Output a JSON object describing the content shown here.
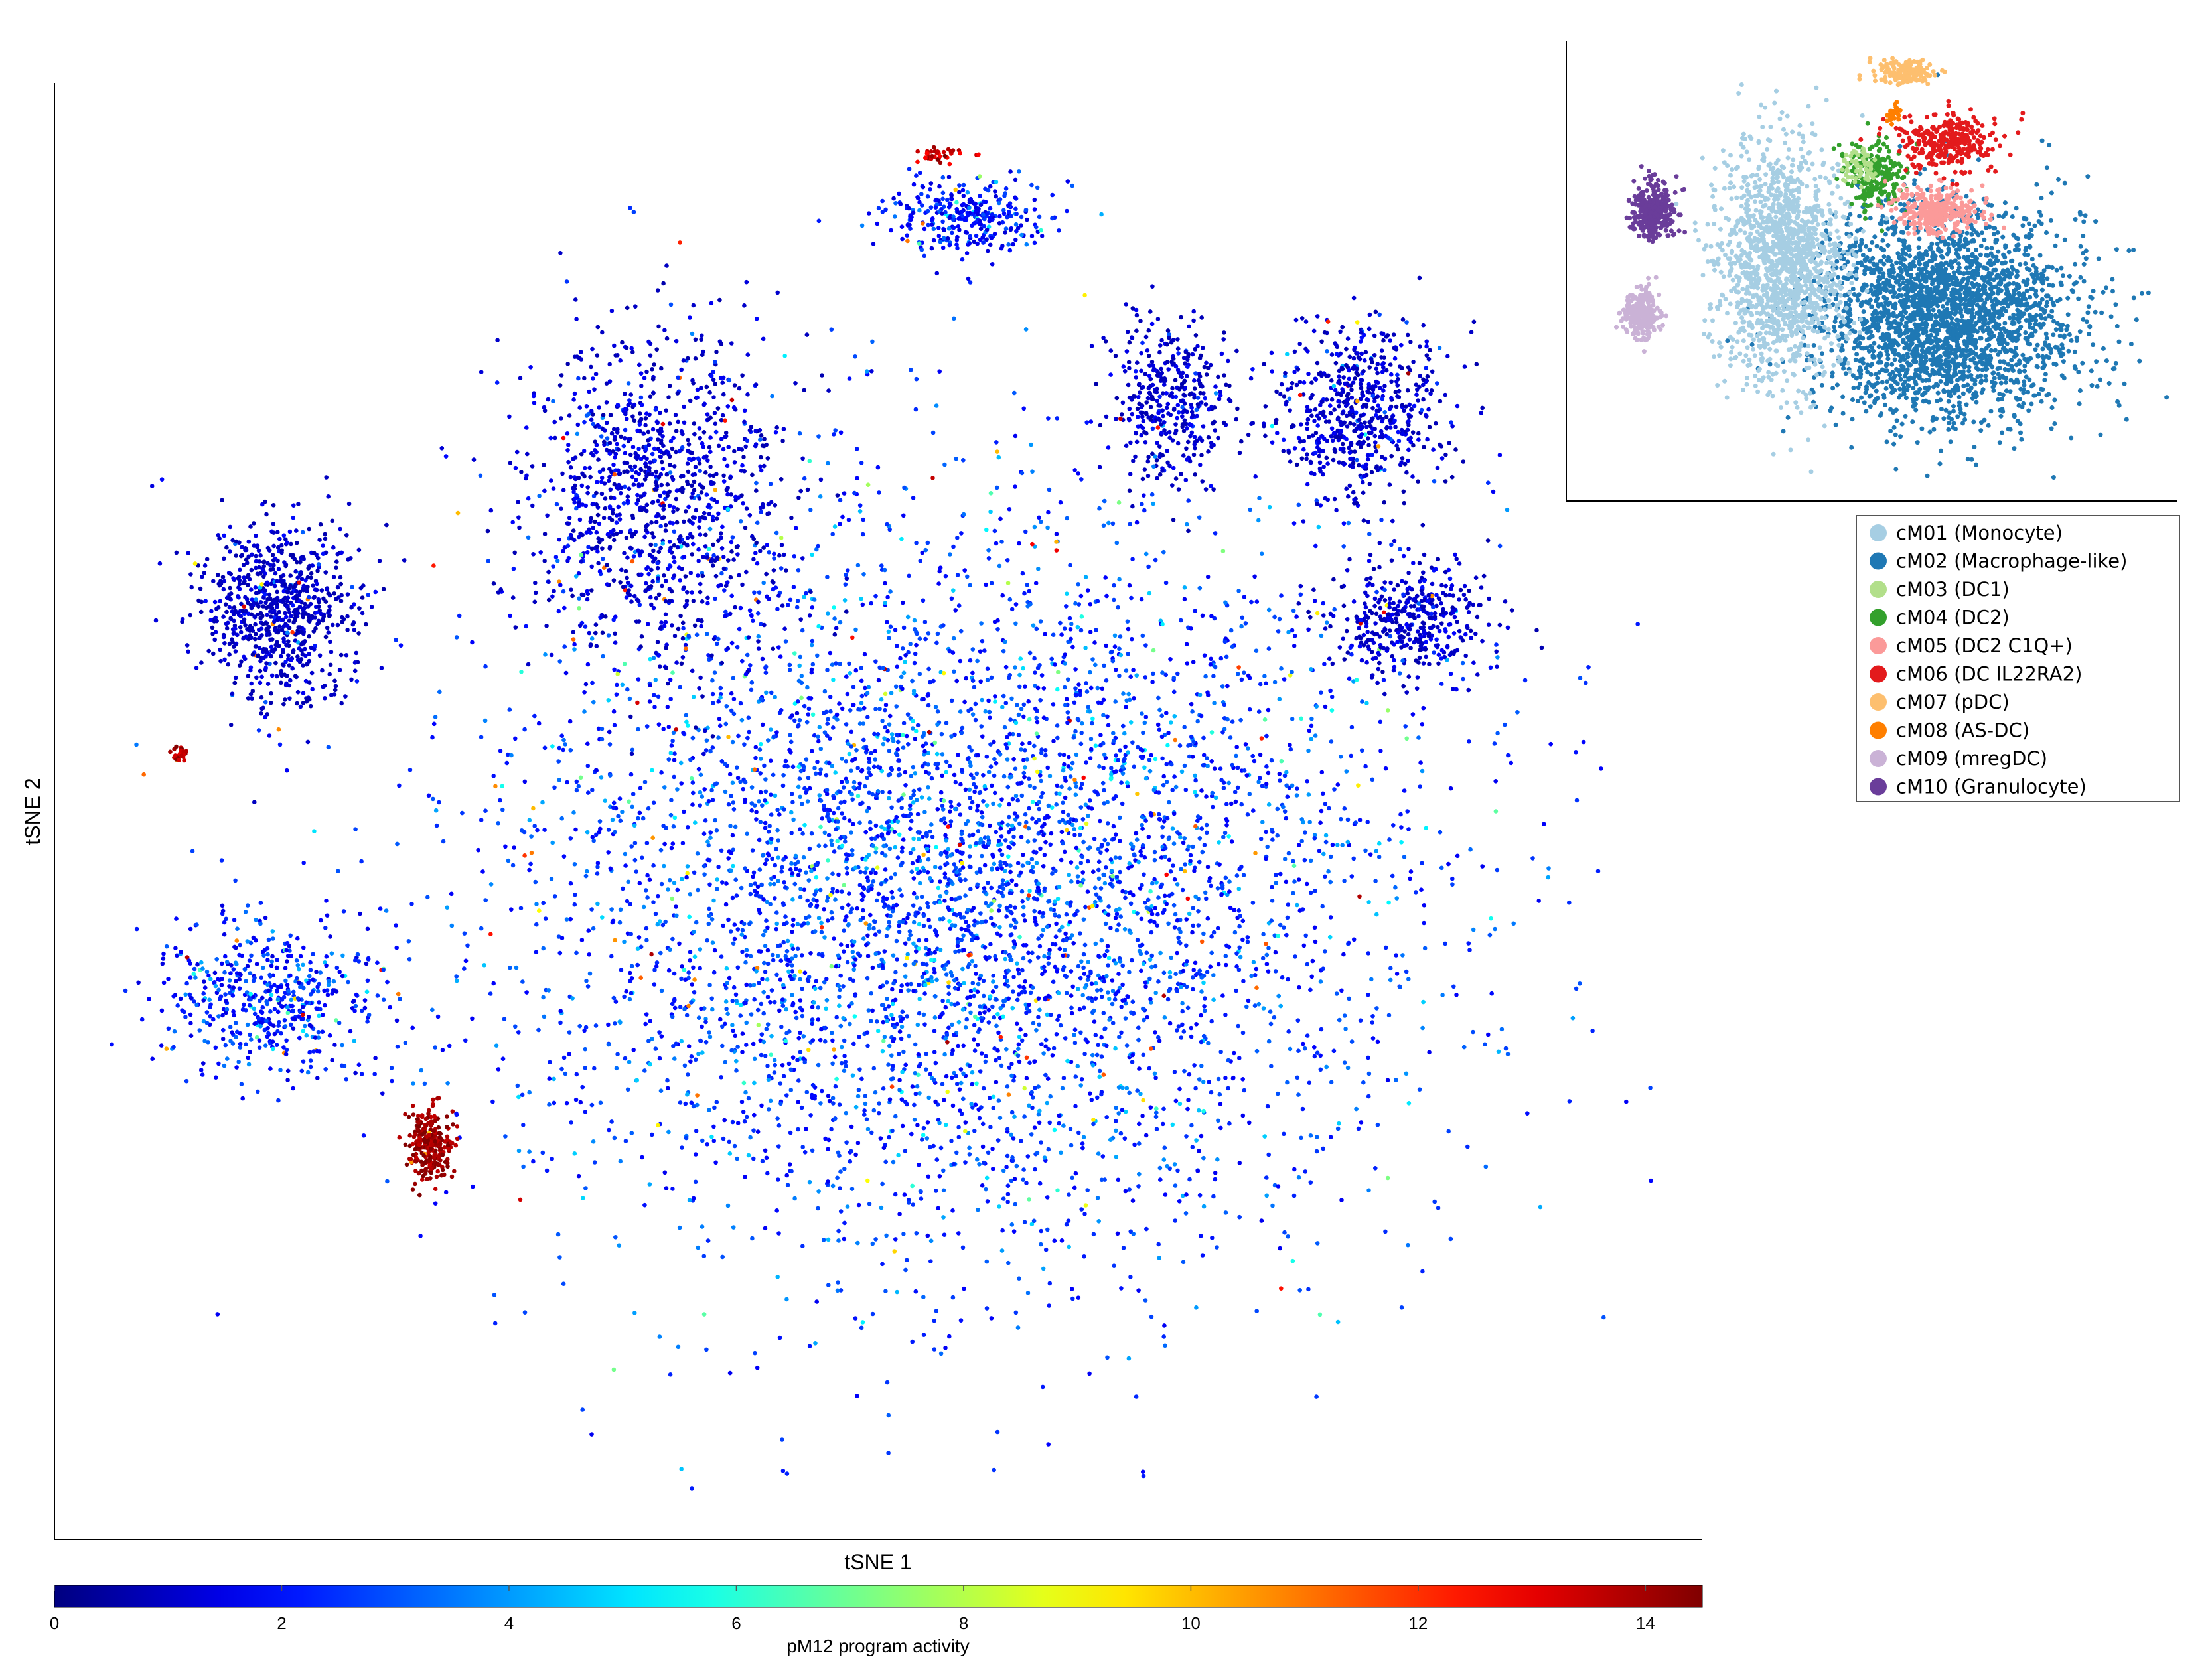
{
  "chart_data": [
    {
      "type": "scatter",
      "role": "main-embedding",
      "xlabel": "tSNE 1",
      "ylabel": "tSNE 2",
      "grid": false,
      "colorbar": {
        "label": "pM12 program activity",
        "colormap": "jet",
        "range": [
          0,
          14.5
        ],
        "ticks": [
          0,
          2,
          4,
          6,
          8,
          10,
          12,
          14
        ],
        "tick_labels": [
          "0",
          "2",
          "4",
          "6",
          "8",
          "10",
          "12",
          "14"
        ]
      },
      "clusters": [
        {
          "id": "center-mass",
          "cx": 0.55,
          "cy": 0.56,
          "sx": 0.26,
          "sy": 0.24,
          "n": 5200,
          "base_activity": 1.6,
          "spread": 2.6
        },
        {
          "id": "top-left-lobe",
          "cx": 0.36,
          "cy": 0.28,
          "sx": 0.08,
          "sy": 0.11,
          "n": 1100,
          "base_activity": 0.6,
          "spread": 1.4
        },
        {
          "id": "top-island",
          "cx": 0.56,
          "cy": 0.08,
          "sx": 0.05,
          "sy": 0.025,
          "n": 320,
          "base_activity": 1.2,
          "spread": 2.0
        },
        {
          "id": "top-right-lobe-1",
          "cx": 0.69,
          "cy": 0.21,
          "sx": 0.035,
          "sy": 0.055,
          "n": 380,
          "base_activity": 0.6,
          "spread": 1.2
        },
        {
          "id": "top-right-lobe-2",
          "cx": 0.81,
          "cy": 0.22,
          "sx": 0.05,
          "sy": 0.06,
          "n": 620,
          "base_activity": 0.6,
          "spread": 1.2
        },
        {
          "id": "right-lobe",
          "cx": 0.84,
          "cy": 0.37,
          "sx": 0.045,
          "sy": 0.04,
          "n": 420,
          "base_activity": 0.6,
          "spread": 1.2
        },
        {
          "id": "left-island-upper",
          "cx": 0.12,
          "cy": 0.36,
          "sx": 0.045,
          "sy": 0.06,
          "n": 760,
          "base_activity": 0.6,
          "spread": 1.0
        },
        {
          "id": "left-island-lower",
          "cx": 0.11,
          "cy": 0.64,
          "sx": 0.06,
          "sy": 0.05,
          "n": 520,
          "base_activity": 1.3,
          "spread": 2.4
        },
        {
          "id": "hotspot-lower-left",
          "cx": 0.215,
          "cy": 0.745,
          "sx": 0.013,
          "sy": 0.025,
          "n": 260,
          "base_activity": 13.5,
          "spread": 1.5
        },
        {
          "id": "hotspot-top-island",
          "cx": 0.54,
          "cy": 0.035,
          "sx": 0.015,
          "sy": 0.006,
          "n": 40,
          "base_activity": 12.5,
          "spread": 2.0
        },
        {
          "id": "hotspot-left-upper",
          "cx": 0.055,
          "cy": 0.465,
          "sx": 0.005,
          "sy": 0.005,
          "n": 25,
          "base_activity": 13.0,
          "spread": 1.5
        }
      ]
    },
    {
      "type": "scatter",
      "role": "inset-embedding",
      "legend_position": "below-inset",
      "series": [
        {
          "name": "cM01 (Monocyte)",
          "color": "#a6cee3"
        },
        {
          "name": "cM02 (Macrophage-like)",
          "color": "#1f78b4"
        },
        {
          "name": "cM03 (DC1)",
          "color": "#b2df8a"
        },
        {
          "name": "cM04 (DC2)",
          "color": "#33a02c"
        },
        {
          "name": "cM05 (DC2 C1Q+)",
          "color": "#fb9a99"
        },
        {
          "name": "cM06 (DC IL22RA2)",
          "color": "#e31a1c"
        },
        {
          "name": "cM07 (pDC)",
          "color": "#fdbf6f"
        },
        {
          "name": "cM08 (AS-DC)",
          "color": "#ff7f00"
        },
        {
          "name": "cM09 (mregDC)",
          "color": "#cab2d6"
        },
        {
          "name": "cM10 (Granulocyte)",
          "color": "#6a3d9a"
        }
      ],
      "blobs": [
        {
          "series": 1,
          "cx": 0.62,
          "cy": 0.62,
          "sx": 0.2,
          "sy": 0.22,
          "n": 2600
        },
        {
          "series": 0,
          "cx": 0.34,
          "cy": 0.5,
          "sx": 0.1,
          "sy": 0.24,
          "n": 1500
        },
        {
          "series": 3,
          "cx": 0.5,
          "cy": 0.3,
          "sx": 0.05,
          "sy": 0.07,
          "n": 220
        },
        {
          "series": 2,
          "cx": 0.47,
          "cy": 0.28,
          "sx": 0.03,
          "sy": 0.04,
          "n": 60
        },
        {
          "series": 4,
          "cx": 0.6,
          "cy": 0.38,
          "sx": 0.07,
          "sy": 0.05,
          "n": 320
        },
        {
          "series": 5,
          "cx": 0.62,
          "cy": 0.22,
          "sx": 0.08,
          "sy": 0.06,
          "n": 300
        },
        {
          "series": 6,
          "cx": 0.55,
          "cy": 0.06,
          "sx": 0.04,
          "sy": 0.025,
          "n": 160
        },
        {
          "series": 7,
          "cx": 0.53,
          "cy": 0.16,
          "sx": 0.01,
          "sy": 0.02,
          "n": 30
        },
        {
          "series": 8,
          "cx": 0.1,
          "cy": 0.62,
          "sx": 0.03,
          "sy": 0.05,
          "n": 260
        },
        {
          "series": 9,
          "cx": 0.12,
          "cy": 0.38,
          "sx": 0.035,
          "sy": 0.06,
          "n": 320
        }
      ]
    }
  ]
}
